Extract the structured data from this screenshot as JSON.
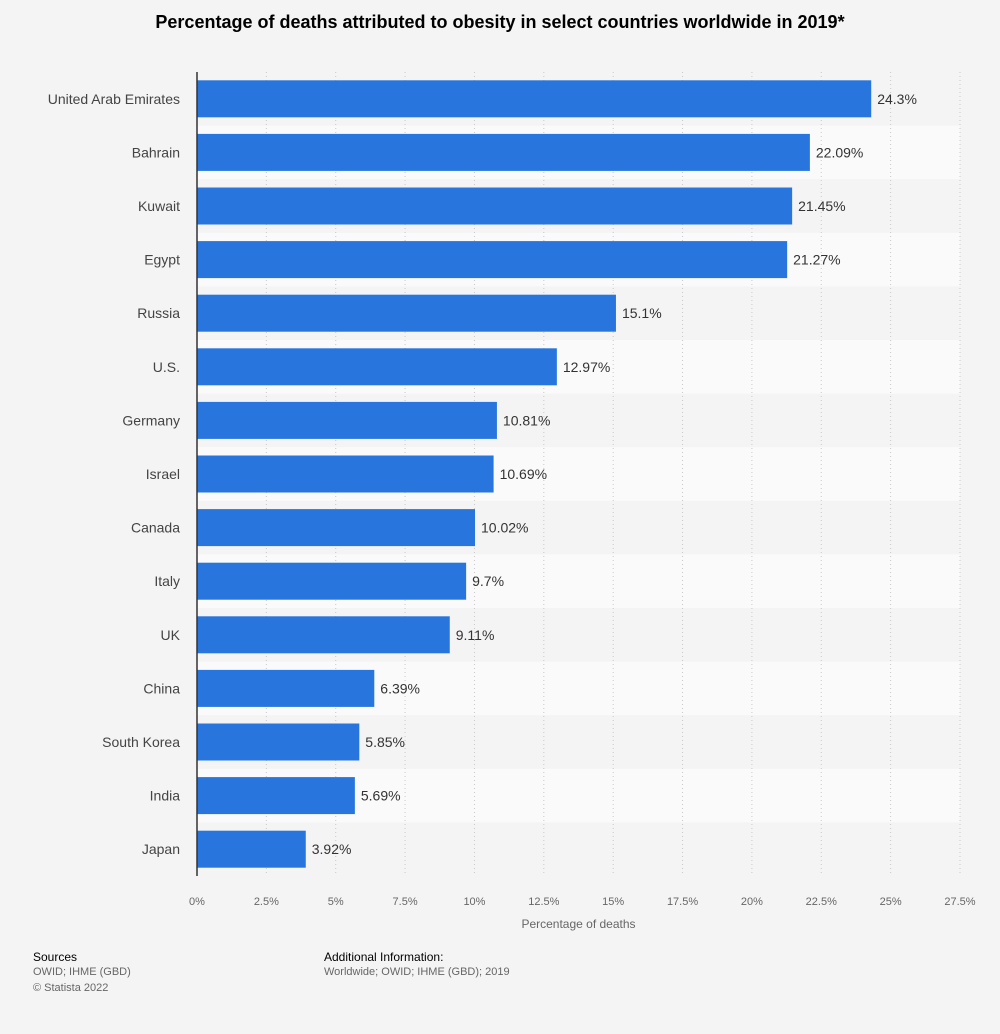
{
  "chart_data": {
    "type": "bar",
    "orientation": "horizontal",
    "title": "Percentage of deaths attributed to obesity in select countries worldwide in 2019*",
    "xlabel": "Percentage of deaths",
    "ylabel": "",
    "xlim": [
      0,
      27.5
    ],
    "x_ticks": [
      "0%",
      "2.5%",
      "5%",
      "7.5%",
      "10%",
      "12.5%",
      "15%",
      "17.5%",
      "20%",
      "22.5%",
      "25%",
      "27.5%"
    ],
    "x_tick_values": [
      0,
      2.5,
      5,
      7.5,
      10,
      12.5,
      15,
      17.5,
      20,
      22.5,
      25,
      27.5
    ],
    "grid": true,
    "legend": "none",
    "bar_color": "#2876dd",
    "categories": [
      "United Arab Emirates",
      "Bahrain",
      "Kuwait",
      "Egypt",
      "Russia",
      "U.S.",
      "Germany",
      "Israel",
      "Canada",
      "Italy",
      "UK",
      "China",
      "South Korea",
      "India",
      "Japan"
    ],
    "values": [
      24.3,
      22.09,
      21.45,
      21.27,
      15.1,
      12.97,
      10.81,
      10.69,
      10.02,
      9.7,
      9.11,
      6.39,
      5.85,
      5.69,
      3.92
    ],
    "value_labels": [
      "24.3%",
      "22.09%",
      "21.45%",
      "21.27%",
      "15.1%",
      "12.97%",
      "10.81%",
      "10.69%",
      "10.02%",
      "9.7%",
      "9.11%",
      "6.39%",
      "5.85%",
      "5.69%",
      "3.92%"
    ]
  },
  "footer": {
    "sources_title": "Sources",
    "sources_lines": [
      "OWID; IHME (GBD)",
      "© Statista 2022"
    ],
    "additional_title": "Additional Information:",
    "additional_lines": [
      "Worldwide; OWID; IHME (GBD); 2019"
    ]
  }
}
